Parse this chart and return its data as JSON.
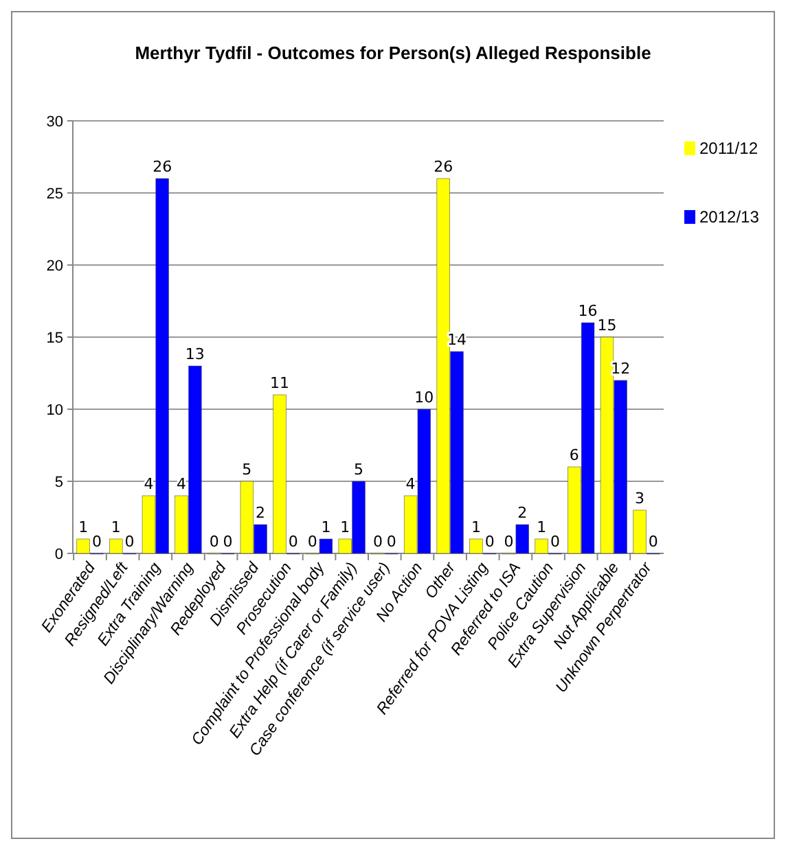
{
  "chart_data": {
    "type": "bar",
    "title": "Merthyr Tydfil - Outcomes for Person(s) Alleged Responsible",
    "categories": [
      "Exonerated",
      "Resigned/Left",
      "Extra Training",
      "Disciplinary/Warning",
      "Redeployed",
      "Dismissed",
      "Prosecution",
      "Complaint to Professional body",
      "Extra Help (if Carer or Family)",
      "Case conference (if service user)",
      "No Action",
      "Other",
      "Referred for POVA Listing",
      "Referred to ISA",
      "Police Caution",
      "Extra Supervision",
      "Not Applicable",
      "Unknown Perpertrator"
    ],
    "series": [
      {
        "name": "2011/12",
        "color": "#ffff00",
        "values": [
          1,
          1,
          4,
          4,
          0,
          5,
          11,
          0,
          1,
          0,
          4,
          26,
          1,
          0,
          1,
          6,
          15,
          3
        ]
      },
      {
        "name": "2012/13",
        "color": "#0000ff",
        "values": [
          0,
          0,
          26,
          13,
          0,
          2,
          0,
          1,
          5,
          0,
          10,
          14,
          0,
          2,
          0,
          16,
          12,
          0
        ]
      }
    ],
    "ylim": [
      0,
      30
    ],
    "yticks": [
      0,
      5,
      10,
      15,
      20,
      25,
      30
    ],
    "grid": "y",
    "legend": "right",
    "data_labels": true
  }
}
